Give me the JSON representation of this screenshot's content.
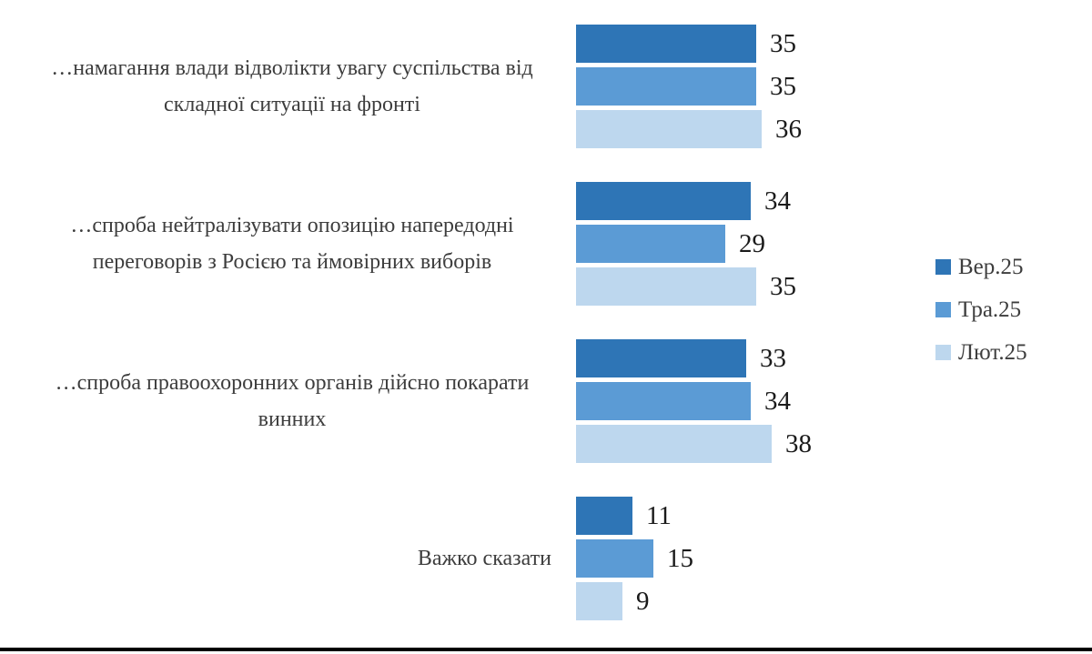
{
  "chart_data": {
    "type": "bar",
    "orientation": "horizontal",
    "title": "",
    "categories": [
      "…намагання влади відволікти увагу суспільства від складної ситуації на фронті",
      "…спроба нейтралізувати опозицію напередодні переговорів з Росією та ймовірних виборів",
      "…спроба правоохоронних органів дійсно покарати винних",
      "Важко сказати"
    ],
    "series": [
      {
        "name": "Вер.25",
        "color": "#2E75B6",
        "values": [
          35,
          34,
          33,
          11
        ]
      },
      {
        "name": "Тра.25",
        "color": "#5B9BD5",
        "values": [
          35,
          29,
          34,
          15
        ]
      },
      {
        "name": "Лют.25",
        "color": "#BDD7EE",
        "values": [
          36,
          35,
          38,
          9
        ]
      }
    ],
    "value_labels": true,
    "legend_position": "right",
    "grid": false,
    "axes_visible": false,
    "baseline_rule_color": "#000000"
  }
}
